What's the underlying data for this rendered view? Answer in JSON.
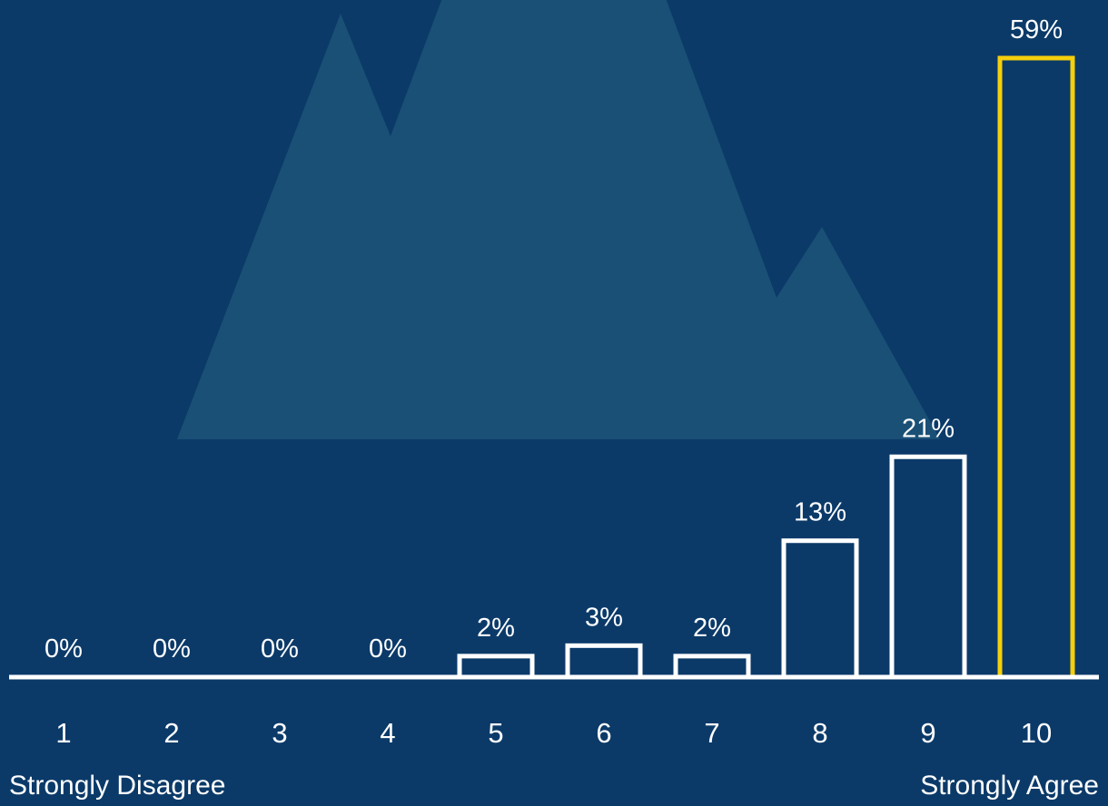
{
  "chart_data": {
    "type": "bar",
    "categories": [
      "1",
      "2",
      "3",
      "4",
      "5",
      "6",
      "7",
      "8",
      "9",
      "10"
    ],
    "values": [
      0,
      0,
      0,
      0,
      2,
      3,
      2,
      13,
      21,
      59
    ],
    "value_labels": [
      "0%",
      "0%",
      "0%",
      "0%",
      "2%",
      "3%",
      "2%",
      "13%",
      "21%",
      "59%"
    ],
    "ylim": [
      0,
      59
    ],
    "highlight_index": 9,
    "scale_left_label": "Strongly Disagree",
    "scale_right_label": "Strongly Agree",
    "grid": false
  },
  "colors": {
    "background": "#0b3a69",
    "mountain": "#1a5076",
    "bar_outline": "#ffffff",
    "highlight": "#f5cf0c",
    "text": "#ffffff"
  }
}
